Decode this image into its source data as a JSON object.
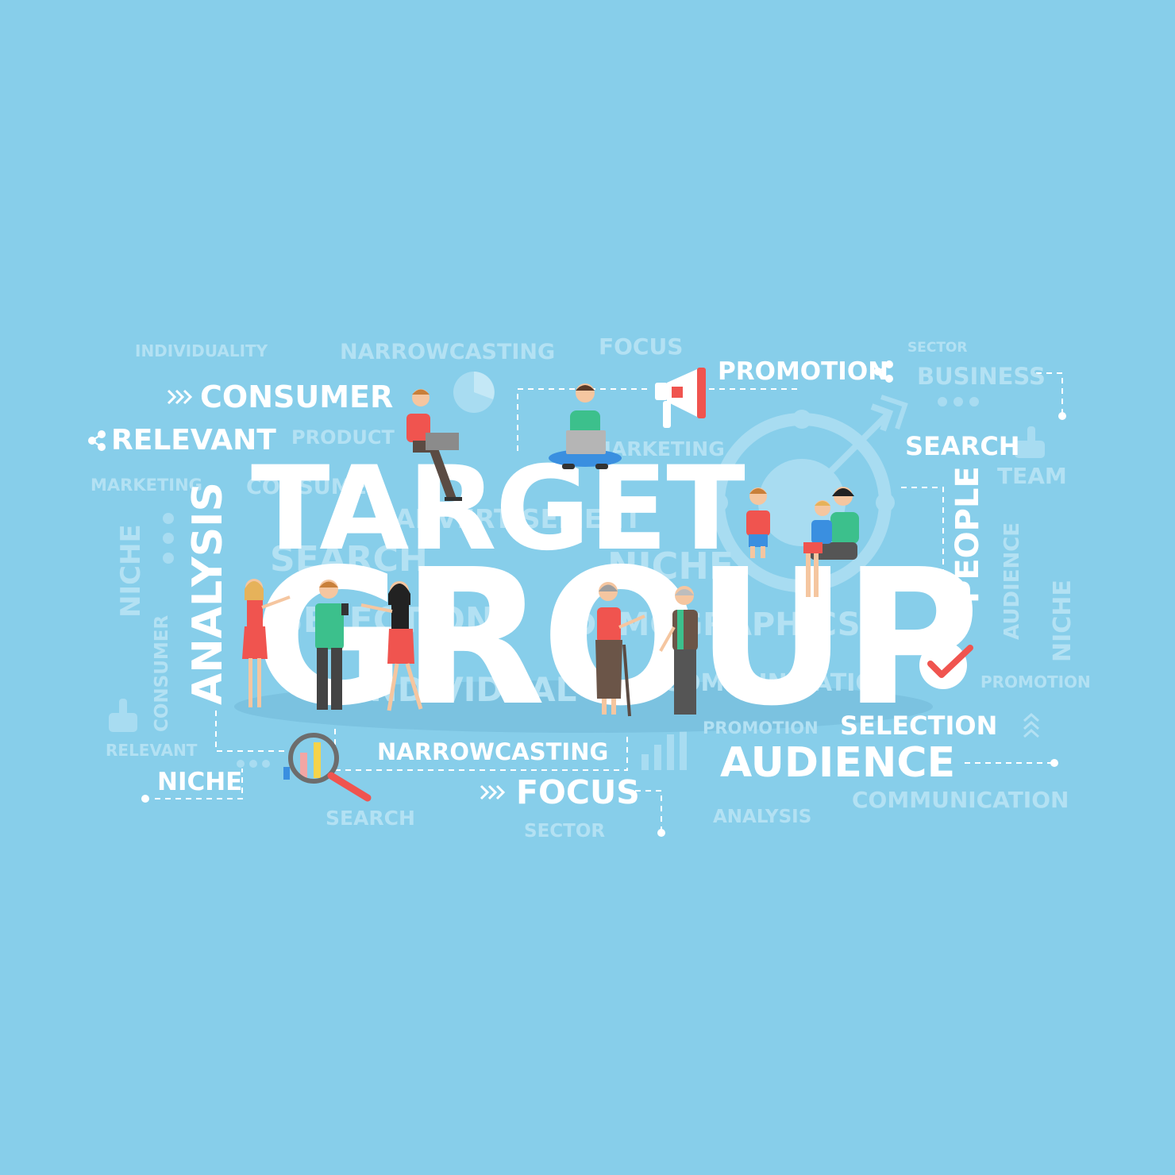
{
  "headline": {
    "line1": "TARGET",
    "line2": "GROUP"
  },
  "words": {
    "consumer": "CONSUMER",
    "relevant": "RELEVANT",
    "promotion": "PROMOTION",
    "search": "SEARCH",
    "people": "PEOPLE",
    "analysis": "ANALYSIS",
    "narrowcasting": "NARROWCASTING",
    "focus": "FOCUS",
    "niche": "NICHE",
    "selection": "SELECTION",
    "audience": "AUDIENCE"
  },
  "background_words": {
    "individuality": "INDIVIDUALITY",
    "narrowcasting": "NARROWCASTING",
    "focus": "FOCUS",
    "sector_top": "SECTOR",
    "business": "BUSINESS",
    "product": "PRODUCT",
    "marketing_left": "MARKETING",
    "marketing_mid": "MARKETING",
    "consumer_mid": "CONSUMER",
    "team": "TEAM",
    "advertisement": "ADVERTISEMENT",
    "search_mid": "SEARCH",
    "niche_mid": "NICHE",
    "selection_mid": "SELECTION",
    "demographics": "DEMOGRAPHICS",
    "individual": "INDIVIDUAL",
    "communication_mid": "COMMUNICATION",
    "niche_vertical_left": "NICHE",
    "consumer_vertical": "CONSUMER",
    "audience_vertical": "AUDIENCE",
    "niche_vertical_right": "NICHE",
    "promotion_right": "PROMOTION",
    "relevant_bottom": "RELEVANT",
    "promotion_bottom": "PROMOTION",
    "communication_bottom": "COMMUNICATION",
    "search_bottom": "SEARCH",
    "sector_bottom": "SECTOR",
    "analysis_bottom": "ANALYSIS"
  },
  "colors": {
    "background": "#87CEEA",
    "primary_text": "#ffffff",
    "accent_red": "#F0544F",
    "accent_green": "#3CC08C",
    "accent_blue": "#3A8FE0"
  },
  "icons": [
    "megaphone-icon",
    "checkmark-icon",
    "magnifier-icon",
    "thumbs-up-icon",
    "share-icon",
    "pie-chart-icon",
    "bar-chart-icon",
    "target-icon",
    "arrows-icon"
  ]
}
